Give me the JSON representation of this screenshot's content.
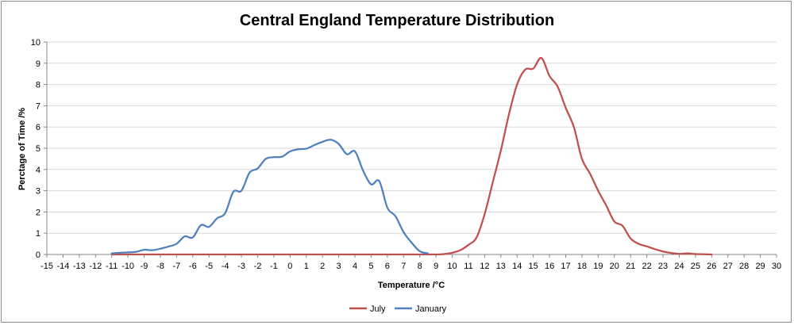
{
  "chart_data": {
    "type": "line",
    "title": "Central England Temperature Distribution",
    "xlabel": "Temperature /°C",
    "ylabel": "Perctage of Time /%",
    "xlim": [
      -15,
      30
    ],
    "ylim": [
      0,
      10
    ],
    "x_ticks": [
      -15,
      -14,
      -13,
      -12,
      -11,
      -10,
      -9,
      -8,
      -7,
      -6,
      -5,
      -4,
      -3,
      -2,
      -1,
      0,
      1,
      2,
      3,
      4,
      5,
      6,
      7,
      8,
      9,
      10,
      11,
      12,
      13,
      14,
      15,
      16,
      17,
      18,
      19,
      20,
      21,
      22,
      23,
      24,
      25,
      26,
      27,
      28,
      29,
      30
    ],
    "y_ticks": [
      0,
      1,
      2,
      3,
      4,
      5,
      6,
      7,
      8,
      9,
      10
    ],
    "grid": true,
    "legend": "bottom",
    "series": [
      {
        "name": "July",
        "color": "#c0504d",
        "points": [
          [
            -11,
            0
          ],
          [
            -10,
            0
          ],
          [
            -9,
            0
          ],
          [
            -8,
            0
          ],
          [
            -7,
            0
          ],
          [
            -6,
            0
          ],
          [
            -5,
            0
          ],
          [
            -4,
            0
          ],
          [
            -3,
            0
          ],
          [
            -2,
            0
          ],
          [
            -1,
            0
          ],
          [
            0,
            0
          ],
          [
            1,
            0
          ],
          [
            2,
            0
          ],
          [
            3,
            0
          ],
          [
            4,
            0
          ],
          [
            5,
            0
          ],
          [
            6,
            0
          ],
          [
            7,
            0
          ],
          [
            8,
            0
          ],
          [
            9,
            0
          ],
          [
            9.5,
            0.02
          ],
          [
            10,
            0.08
          ],
          [
            10.5,
            0.2
          ],
          [
            11,
            0.45
          ],
          [
            11.5,
            0.8
          ],
          [
            12,
            1.9
          ],
          [
            12.5,
            3.4
          ],
          [
            13,
            4.9
          ],
          [
            13.5,
            6.6
          ],
          [
            14,
            8.0
          ],
          [
            14.5,
            8.7
          ],
          [
            15,
            8.75
          ],
          [
            15.5,
            9.25
          ],
          [
            16,
            8.4
          ],
          [
            16.5,
            7.9
          ],
          [
            17,
            6.9
          ],
          [
            17.5,
            6.0
          ],
          [
            18,
            4.5
          ],
          [
            18.5,
            3.8
          ],
          [
            19,
            3.0
          ],
          [
            19.5,
            2.3
          ],
          [
            20,
            1.55
          ],
          [
            20.5,
            1.35
          ],
          [
            21,
            0.75
          ],
          [
            21.5,
            0.5
          ],
          [
            22,
            0.38
          ],
          [
            22.5,
            0.25
          ],
          [
            23,
            0.14
          ],
          [
            23.5,
            0.07
          ],
          [
            24,
            0.03
          ],
          [
            24.5,
            0.05
          ],
          [
            25,
            0.02
          ],
          [
            25.5,
            0.01
          ],
          [
            26,
            0
          ]
        ]
      },
      {
        "name": "January",
        "color": "#4f81bd",
        "points": [
          [
            -11,
            0.05
          ],
          [
            -10.5,
            0.08
          ],
          [
            -10,
            0.1
          ],
          [
            -9.5,
            0.12
          ],
          [
            -9,
            0.22
          ],
          [
            -8.5,
            0.2
          ],
          [
            -8,
            0.27
          ],
          [
            -7.5,
            0.37
          ],
          [
            -7,
            0.5
          ],
          [
            -6.5,
            0.85
          ],
          [
            -6,
            0.8
          ],
          [
            -5.5,
            1.38
          ],
          [
            -5,
            1.3
          ],
          [
            -4.5,
            1.7
          ],
          [
            -4,
            1.95
          ],
          [
            -3.5,
            2.95
          ],
          [
            -3,
            3.0
          ],
          [
            -2.5,
            3.85
          ],
          [
            -2,
            4.05
          ],
          [
            -1.5,
            4.5
          ],
          [
            -1,
            4.58
          ],
          [
            -0.5,
            4.6
          ],
          [
            0,
            4.85
          ],
          [
            0.5,
            4.95
          ],
          [
            1,
            4.98
          ],
          [
            1.5,
            5.15
          ],
          [
            2,
            5.3
          ],
          [
            2.5,
            5.4
          ],
          [
            3,
            5.2
          ],
          [
            3.5,
            4.72
          ],
          [
            4,
            4.85
          ],
          [
            4.5,
            3.95
          ],
          [
            5,
            3.3
          ],
          [
            5.5,
            3.45
          ],
          [
            6,
            2.2
          ],
          [
            6.5,
            1.8
          ],
          [
            7,
            1.05
          ],
          [
            7.5,
            0.55
          ],
          [
            8,
            0.15
          ],
          [
            8.5,
            0.05
          ]
        ]
      }
    ]
  }
}
